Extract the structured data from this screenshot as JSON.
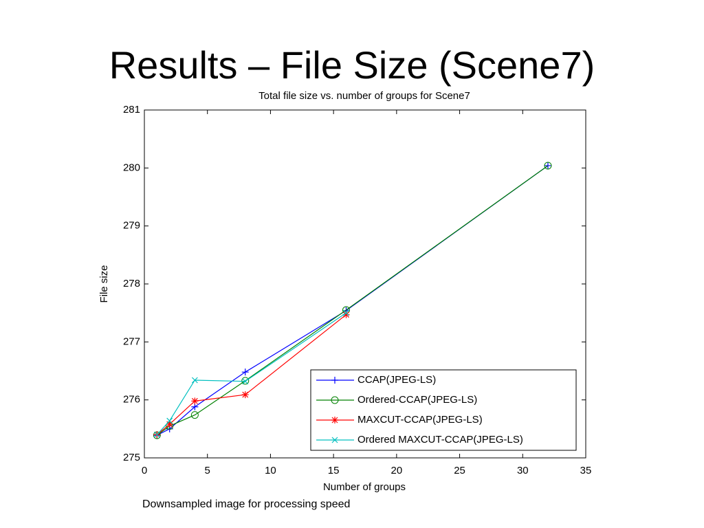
{
  "title": "Results – File Size (Scene7)",
  "caption": "Downsampled image for processing speed",
  "chart_data": {
    "type": "line",
    "title": "Total file size vs. number of groups for Scene7",
    "x_label": "Number of groups",
    "y_label": "File size",
    "x": [
      1,
      2,
      4,
      8,
      16,
      32
    ],
    "series": [
      {
        "name": "CCAP(JPEG-LS)",
        "color": "#0000ff",
        "marker": "plus",
        "values": [
          275.39,
          275.5,
          275.88,
          276.48,
          277.54,
          280.04
        ]
      },
      {
        "name": "Ordered-CCAP(JPEG-LS)",
        "color": "#008000",
        "marker": "circle",
        "values": [
          275.39,
          275.55,
          275.74,
          276.33,
          277.55,
          280.04
        ]
      },
      {
        "name": "MAXCUT-CCAP(JPEG-LS)",
        "color": "#ff0000",
        "marker": "star",
        "values": [
          275.4,
          275.58,
          275.98,
          276.09,
          277.47,
          null
        ]
      },
      {
        "name": "Ordered MAXCUT-CCAP(JPEG-LS)",
        "color": "#00bfbf",
        "marker": "cross",
        "values": [
          275.4,
          275.64,
          276.34,
          276.32,
          277.5,
          null
        ]
      }
    ],
    "xlim": [
      0,
      35
    ],
    "xticks": [
      0,
      5,
      10,
      15,
      20,
      25,
      30,
      35
    ],
    "ylim": [
      275,
      281
    ],
    "yticks": [
      275,
      276,
      277,
      278,
      279,
      280,
      281
    ],
    "legend": "lower right",
    "grid": false
  }
}
